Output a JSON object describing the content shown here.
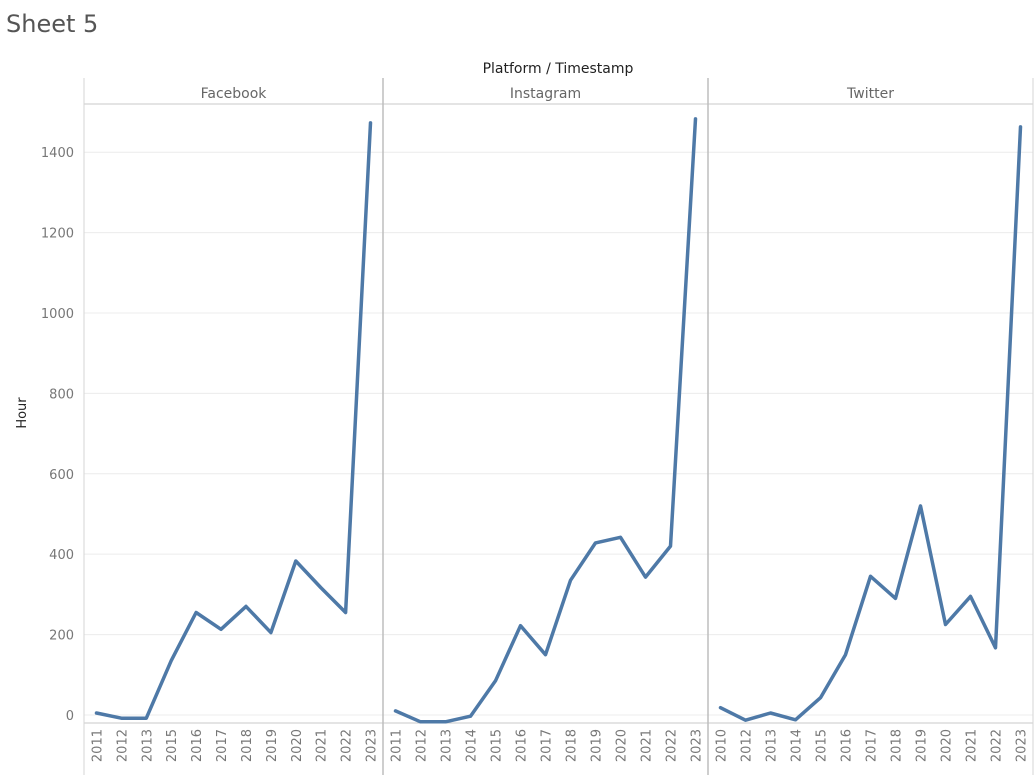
{
  "sheet": {
    "title": "Sheet 5"
  },
  "chart_data": {
    "type": "line",
    "title": "Platform / Timestamp",
    "ylabel": "Hour",
    "ylim": [
      -20,
      1520
    ],
    "yticks": [
      0,
      200,
      400,
      600,
      800,
      1000,
      1200,
      1400
    ],
    "grid": true,
    "color": "#4e79a7",
    "panels": [
      {
        "name": "Facebook",
        "x": [
          "2011",
          "2012",
          "2013",
          "2015",
          "2016",
          "2017",
          "2018",
          "2019",
          "2020",
          "2021",
          "2022",
          "2023"
        ],
        "values": [
          5,
          -8,
          -8,
          135,
          255,
          213,
          270,
          205,
          383,
          317,
          255,
          1473
        ]
      },
      {
        "name": "Instagram",
        "x": [
          "2011",
          "2012",
          "2013",
          "2014",
          "2015",
          "2016",
          "2017",
          "2018",
          "2019",
          "2020",
          "2021",
          "2022",
          "2023"
        ],
        "values": [
          10,
          -17,
          -17,
          -3,
          85,
          222,
          150,
          335,
          428,
          442,
          343,
          420,
          1483
        ]
      },
      {
        "name": "Twitter",
        "x": [
          "2010",
          "2012",
          "2013",
          "2014",
          "2015",
          "2016",
          "2017",
          "2018",
          "2019",
          "2020",
          "2021",
          "2022",
          "2023"
        ],
        "values": [
          18,
          -13,
          5,
          -12,
          43,
          150,
          345,
          290,
          520,
          225,
          295,
          167,
          1463
        ]
      }
    ]
  }
}
